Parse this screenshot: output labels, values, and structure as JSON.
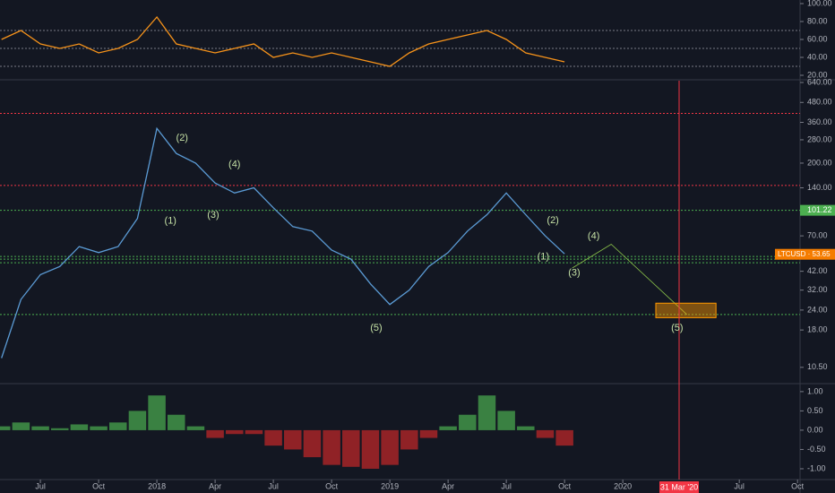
{
  "chart_data": [
    {
      "type": "line",
      "color": "#f7931a",
      "x": [
        4,
        5,
        6,
        7,
        8,
        9,
        10,
        11,
        12,
        13,
        14,
        15,
        16,
        17,
        18,
        19,
        20,
        21,
        22,
        23,
        24,
        25,
        26,
        27,
        28,
        29,
        30,
        31,
        32,
        33
      ],
      "values": [
        60,
        70,
        55,
        50,
        55,
        45,
        50,
        60,
        85,
        55,
        50,
        45,
        50,
        55,
        40,
        45,
        40,
        45,
        40,
        35,
        30,
        45,
        55,
        60,
        65,
        70,
        60,
        45,
        40,
        35
      ],
      "xlim": [
        3.92,
        45.13
      ],
      "ylim": [
        16,
        104
      ],
      "yticks": [
        {
          "value": 100,
          "label": "100.00"
        },
        {
          "value": 80,
          "label": "80.00"
        },
        {
          "value": 60,
          "label": "60.00"
        },
        {
          "value": 40,
          "label": "40.00"
        },
        {
          "value": 20,
          "label": "20.00"
        }
      ],
      "hlines": [
        {
          "value": 70,
          "color": "#787b86"
        },
        {
          "value": 50,
          "color": "#787b86"
        },
        {
          "value": 30,
          "color": "#787b86"
        }
      ]
    },
    {
      "type": "line",
      "color": "#5b9bd5",
      "log_scale": true,
      "x": [
        4,
        5,
        6,
        7,
        8,
        9,
        10,
        11,
        12,
        13,
        14,
        15,
        16,
        17,
        18,
        19,
        20,
        21,
        22,
        23,
        24,
        25,
        26,
        27,
        28,
        29,
        30,
        31,
        32,
        33
      ],
      "values": [
        12,
        28,
        40,
        45,
        60,
        55,
        60,
        90,
        330,
        230,
        200,
        150,
        130,
        140,
        105,
        80,
        75,
        57,
        50,
        35,
        26,
        32,
        45,
        55,
        75,
        95,
        130,
        95,
        70,
        54
      ],
      "xlim": [
        3.92,
        45.13
      ],
      "ylim": [
        8.3,
        657
      ],
      "xticks": [
        {
          "value": 6,
          "label": "Jul"
        },
        {
          "value": 9,
          "label": "Oct"
        },
        {
          "value": 12,
          "label": "2018"
        },
        {
          "value": 15,
          "label": "Apr"
        },
        {
          "value": 18,
          "label": "Jul"
        },
        {
          "value": 21,
          "label": "Oct"
        },
        {
          "value": 24,
          "label": "2019"
        },
        {
          "value": 27,
          "label": "Apr"
        },
        {
          "value": 30,
          "label": "Jul"
        },
        {
          "value": 33,
          "label": "Oct"
        },
        {
          "value": 36,
          "label": "2020"
        },
        {
          "value": 42,
          "label": "Jul"
        },
        {
          "value": 45,
          "label": "Oct"
        }
      ],
      "yticks": [
        {
          "value": 640,
          "label": "640.00"
        },
        {
          "value": 480,
          "label": "480.00"
        },
        {
          "value": 360,
          "label": "360.00"
        },
        {
          "value": 280,
          "label": "280.00"
        },
        {
          "value": 200,
          "label": "200.00"
        },
        {
          "value": 140,
          "label": "140.00"
        },
        {
          "value": 70,
          "label": "70.00"
        },
        {
          "value": 42,
          "label": "42.00"
        },
        {
          "value": 32,
          "label": "32.00"
        },
        {
          "value": 24,
          "label": "24.00"
        },
        {
          "value": 18,
          "label": "18.00"
        },
        {
          "value": 10.5,
          "label": "10.50"
        }
      ],
      "hlines": [
        {
          "value": 410,
          "color": "#f23645"
        },
        {
          "value": 145,
          "color": "#f23645"
        },
        {
          "value": 101.22,
          "color": "#4caf50"
        },
        {
          "value": 52,
          "color": "#4caf50"
        },
        {
          "value": 50,
          "color": "#4caf50"
        },
        {
          "value": 47.5,
          "color": "#4caf50"
        },
        {
          "value": 22.5,
          "color": "#4caf50"
        }
      ],
      "level_tag": {
        "value": 101.22,
        "label": "101.22"
      },
      "last_tag": {
        "value": 53.65,
        "label": "LTCUSD · 53.65"
      },
      "projection": {
        "x": [
          33.4,
          35.4,
          39.3
        ],
        "values": [
          44,
          62,
          22.5
        ]
      },
      "target_zone": {
        "x": [
          37.7,
          40.8
        ],
        "values": [
          21.5,
          26.5
        ]
      },
      "marker": {
        "x": 38.9,
        "label": "31 Mar '20"
      },
      "annotations": [
        {
          "text": "(2)",
          "x": 13.3,
          "y": 286
        },
        {
          "text": "(1)",
          "x": 12.7,
          "y": 86.8
        },
        {
          "text": "(3)",
          "x": 14.9,
          "y": 94
        },
        {
          "text": "(4)",
          "x": 16.0,
          "y": 196
        },
        {
          "text": "(5)",
          "x": 23.3,
          "y": 18.5
        },
        {
          "text": "(2)",
          "x": 32.4,
          "y": 87
        },
        {
          "text": "(1)",
          "x": 31.9,
          "y": 51.7
        },
        {
          "text": "(3)",
          "x": 33.5,
          "y": 40.9
        },
        {
          "text": "(4)",
          "x": 34.5,
          "y": 69.6
        },
        {
          "text": "(5)",
          "x": 38.8,
          "y": 18.5
        }
      ]
    },
    {
      "type": "bar",
      "x": [
        4,
        5,
        6,
        7,
        8,
        9,
        10,
        11,
        12,
        13,
        14,
        15,
        16,
        17,
        18,
        19,
        20,
        21,
        22,
        23,
        24,
        25,
        26,
        27,
        28,
        29,
        30,
        31,
        32,
        33
      ],
      "values": [
        0.1,
        0.2,
        0.1,
        0.05,
        0.15,
        0.1,
        0.2,
        0.5,
        0.9,
        0.4,
        0.1,
        -0.2,
        -0.1,
        -0.1,
        -0.4,
        -0.5,
        -0.7,
        -0.9,
        -0.95,
        -1,
        -0.9,
        -0.5,
        -0.2,
        0.1,
        0.4,
        0.9,
        0.5,
        0.1,
        -0.2,
        -0.4
      ],
      "colors": {
        "up": "#4caf50",
        "down": "#c62828"
      },
      "xlim": [
        3.92,
        45.13
      ],
      "ylim": [
        -1.21,
        1.16
      ],
      "yticks": [
        {
          "value": 1,
          "label": "1.00"
        },
        {
          "value": 0.5,
          "label": "0.50"
        },
        {
          "value": 0,
          "label": "0.00"
        },
        {
          "value": -0.5,
          "label": "-0.50"
        },
        {
          "value": -1,
          "label": "-1.00"
        }
      ]
    }
  ]
}
